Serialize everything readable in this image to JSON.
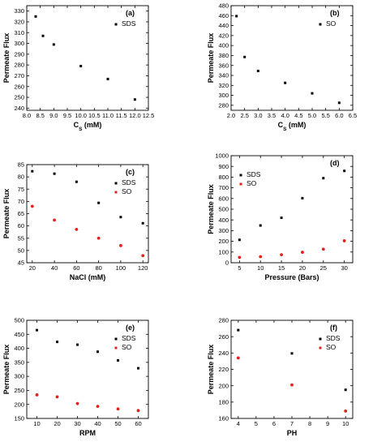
{
  "colors": {
    "SDS": "#000000",
    "SO": "#e3201b"
  },
  "chart_data": [
    {
      "type": "scatter",
      "tag": "(a)",
      "xlabel": "C<sub>S</sub> (mM)",
      "ylabel": "Permeate Flux",
      "xlim": [
        8.0,
        12.5
      ],
      "ylim": [
        238,
        335
      ],
      "xticks": [
        "8.0",
        "8.5",
        "9.0",
        "9.5",
        "10.0",
        "10.5",
        "11.0",
        "11.5",
        "12.0",
        "12.5"
      ],
      "xtick_values": [
        8.0,
        8.5,
        9.0,
        9.5,
        10.0,
        10.5,
        11.0,
        11.5,
        12.0,
        12.5
      ],
      "yticks": [
        "240",
        "250",
        "260",
        "270",
        "280",
        "290",
        "300",
        "310",
        "320",
        "330"
      ],
      "ytick_values": [
        240,
        250,
        260,
        270,
        280,
        290,
        300,
        310,
        320,
        330
      ],
      "legend_position": "top-right",
      "series": [
        {
          "name": "SDS",
          "color": "#000000",
          "x": [
            8.33,
            8.6,
            9.0,
            10.0,
            11.0,
            12.0
          ],
          "y": [
            325,
            307,
            299,
            279,
            267,
            248
          ]
        }
      ]
    },
    {
      "type": "scatter",
      "tag": "(b)",
      "xlabel": "C<sub>S</sub> (mM)",
      "ylabel": "Permeate Flux",
      "xlim": [
        2.0,
        6.5
      ],
      "ylim": [
        270,
        480
      ],
      "xticks": [
        "2.0",
        "2.5",
        "3.0",
        "3.5",
        "4.0",
        "4.5",
        "5.0",
        "5.5",
        "6.0",
        "6.5"
      ],
      "xtick_values": [
        2.0,
        2.5,
        3.0,
        3.5,
        4.0,
        4.5,
        5.0,
        5.5,
        6.0,
        6.5
      ],
      "yticks": [
        "280",
        "300",
        "320",
        "340",
        "360",
        "380",
        "400",
        "420",
        "440",
        "460",
        "480"
      ],
      "ytick_values": [
        280,
        300,
        320,
        340,
        360,
        380,
        400,
        420,
        440,
        460,
        480
      ],
      "legend_position": "top-right",
      "series": [
        {
          "name": "SO",
          "color": "#000000",
          "x": [
            2.2,
            2.5,
            3.0,
            4.0,
            5.0,
            6.0
          ],
          "y": [
            459,
            377,
            349,
            325,
            304,
            285
          ]
        }
      ]
    },
    {
      "type": "scatter",
      "tag": "(c)",
      "xlabel": "NaCl (mM)",
      "ylabel": "Permeate Flux",
      "xlim": [
        15,
        125
      ],
      "ylim": [
        45,
        85
      ],
      "xticks": [
        "20",
        "40",
        "60",
        "80",
        "100",
        "120"
      ],
      "xtick_values": [
        20,
        40,
        60,
        80,
        100,
        120
      ],
      "yticks": [
        "45",
        "50",
        "55",
        "60",
        "65",
        "70",
        "75",
        "80",
        "85"
      ],
      "ytick_values": [
        45,
        50,
        55,
        60,
        65,
        70,
        75,
        80,
        85
      ],
      "legend_position": "top-right",
      "series": [
        {
          "name": "SDS",
          "color": "#000000",
          "x": [
            20,
            40,
            60,
            80,
            100,
            120
          ],
          "y": [
            82.3,
            81.3,
            78,
            69.4,
            63.6,
            61.1
          ]
        },
        {
          "name": "SO",
          "color": "#e3201b",
          "x": [
            20,
            40,
            60,
            80,
            100,
            120
          ],
          "y": [
            68,
            62.4,
            58.6,
            55,
            52,
            47.9
          ]
        }
      ]
    },
    {
      "type": "scatter",
      "tag": "(d)",
      "xlabel": "Pressure (Bars)",
      "ylabel": "Permeate Flux",
      "xlim": [
        3,
        32
      ],
      "ylim": [
        0,
        1000
      ],
      "xticks": [
        "5",
        "10",
        "15",
        "20",
        "25",
        "30"
      ],
      "xtick_values": [
        5,
        10,
        15,
        20,
        25,
        30
      ],
      "yticks": [
        "0",
        "100",
        "200",
        "300",
        "400",
        "500",
        "600",
        "700",
        "800",
        "900",
        "1000"
      ],
      "ytick_values": [
        0,
        100,
        200,
        300,
        400,
        500,
        600,
        700,
        800,
        900,
        1000
      ],
      "legend_position": "top-left",
      "series": [
        {
          "name": "SDS",
          "color": "#000000",
          "x": [
            5,
            10,
            15,
            20,
            25,
            30
          ],
          "y": [
            214,
            348,
            420,
            603,
            790,
            858
          ]
        },
        {
          "name": "SO",
          "color": "#e3201b",
          "x": [
            5,
            10,
            15,
            20,
            25,
            30
          ],
          "y": [
            50,
            57,
            75,
            98,
            127,
            205
          ]
        }
      ]
    },
    {
      "type": "scatter",
      "tag": "(e)",
      "xlabel": "RPM",
      "ylabel": "Permeate Flux",
      "xlim": [
        5,
        65
      ],
      "ylim": [
        150,
        500
      ],
      "xticks": [
        "10",
        "20",
        "30",
        "40",
        "50",
        "60"
      ],
      "xtick_values": [
        10,
        20,
        30,
        40,
        50,
        60
      ],
      "yticks": [
        "150",
        "200",
        "250",
        "300",
        "350",
        "400",
        "450",
        "500"
      ],
      "ytick_values": [
        150,
        200,
        250,
        300,
        350,
        400,
        450,
        500
      ],
      "legend_position": "top-right",
      "series": [
        {
          "name": "SDS",
          "color": "#000000",
          "x": [
            10,
            20,
            30,
            40,
            50,
            60
          ],
          "y": [
            465,
            423,
            413,
            388,
            357,
            329
          ]
        },
        {
          "name": "SO",
          "color": "#e3201b",
          "x": [
            10,
            20,
            30,
            40,
            50,
            60
          ],
          "y": [
            234,
            227,
            203,
            193,
            184,
            178
          ]
        }
      ]
    },
    {
      "type": "scatter",
      "tag": "(f)",
      "xlabel": "PH",
      "ylabel": "Permeate Flux",
      "xlim": [
        3.6,
        10.4
      ],
      "ylim": [
        160,
        280
      ],
      "xticks": [
        "4",
        "5",
        "6",
        "7",
        "8",
        "9",
        "10"
      ],
      "xtick_values": [
        4,
        5,
        6,
        7,
        8,
        9,
        10
      ],
      "yticks": [
        "160",
        "180",
        "200",
        "220",
        "240",
        "260",
        "280"
      ],
      "ytick_values": [
        160,
        180,
        200,
        220,
        240,
        260,
        280
      ],
      "legend_position": "top-right",
      "series": [
        {
          "name": "SDS",
          "color": "#000000",
          "x": [
            4,
            7,
            10
          ],
          "y": [
            268,
            239.5,
            195
          ]
        },
        {
          "name": "SO",
          "color": "#e3201b",
          "x": [
            4,
            7,
            10
          ],
          "y": [
            234,
            201,
            169
          ]
        }
      ]
    }
  ]
}
